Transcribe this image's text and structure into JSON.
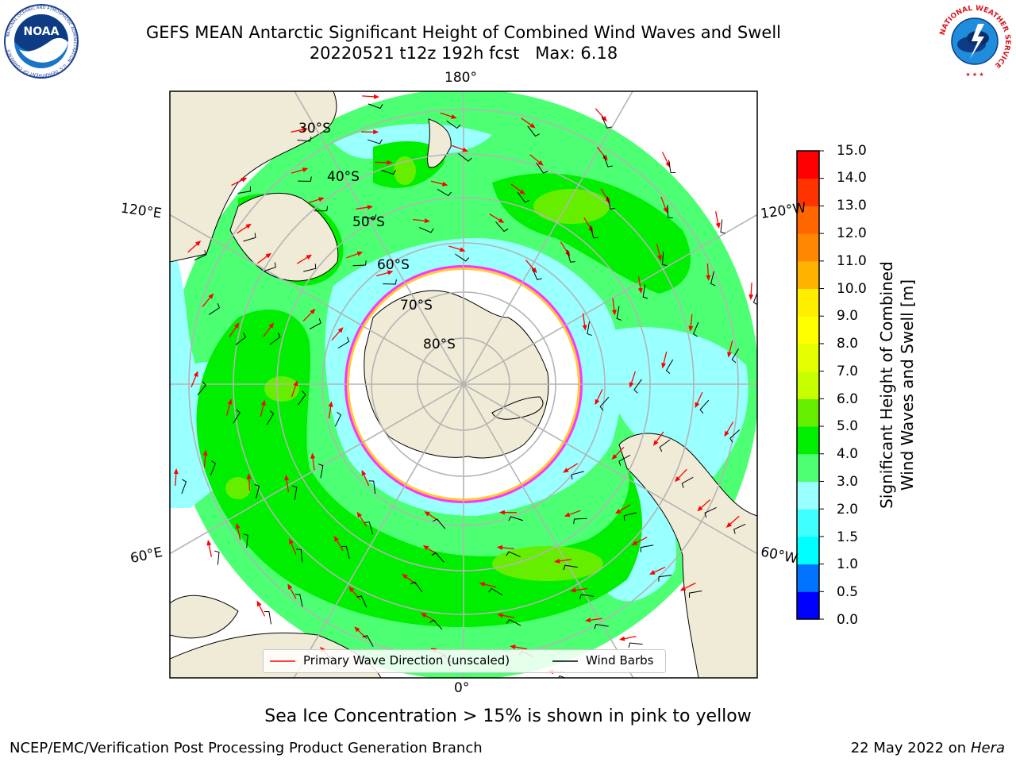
{
  "title": {
    "line1": "GEFS MEAN Antarctic Significant Height of Combined Wind Waves and Swell",
    "run": "20220521 t12z 192h fcst",
    "max_label": "Max: 6.18"
  },
  "map": {
    "projection": "south polar stereographic",
    "longitude_labels": {
      "top": "180°",
      "bottom": "0°",
      "upper_left": "120°E",
      "lower_left": "60°E",
      "upper_right": "120°W",
      "lower_right": "60°W"
    },
    "latitude_labels": [
      "30°S",
      "40°S",
      "50°S",
      "60°S",
      "70°S",
      "80°S"
    ],
    "colors": {
      "land": "#efebd6",
      "sea_ice_interior": "#ffffff",
      "sea_ice_edge": "#ff33ff",
      "sea_ice_edge_inner": "#ffcc33",
      "gridlines": "#b4b4b4",
      "wave_direction": "#ff0000",
      "wind_barbs": "#000000"
    }
  },
  "colorbar": {
    "label_line1": "Significant Height of Combined",
    "label_line2": "Wind Waves and Swell [m]",
    "ticks": [
      "0.0",
      "0.5",
      "1.0",
      "1.5",
      "2.0",
      "3.0",
      "4.0",
      "5.0",
      "6.0",
      "7.0",
      "8.0",
      "9.0",
      "10.0",
      "11.0",
      "12.0",
      "13.0",
      "14.0",
      "15.0"
    ],
    "colors": [
      "#0000ff",
      "#0073ff",
      "#00ffff",
      "#3fffff",
      "#99ffff",
      "#4dff73",
      "#00ee00",
      "#66ee00",
      "#c8ff00",
      "#e6ff00",
      "#ffff00",
      "#ffee00",
      "#ffb300",
      "#ff8800",
      "#ff6600",
      "#ff3300",
      "#ff0000"
    ]
  },
  "legend": {
    "wave_direction_label": "Primary Wave Direction (unscaled)",
    "wind_barbs_label": "Wind Barbs"
  },
  "footer": {
    "note": "Sea Ice Concentration > 15% is shown in pink to yellow",
    "left": "NCEP/EMC/Verification Post Processing Product Generation Branch",
    "date": "22 May 2022 on",
    "machine": "Hera"
  },
  "logos": {
    "noaa_text": "NOAA",
    "noaa_ring": "NATIONAL OCEANIC AND ATMOSPHERIC ADMINISTRATION · U.S. DEPARTMENT OF COMMERCE",
    "nws_ring": "NATIONAL WEATHER SERVICE"
  }
}
